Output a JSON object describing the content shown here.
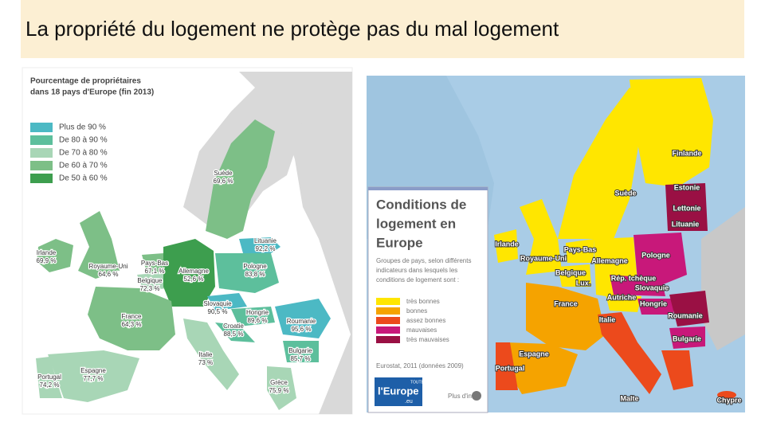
{
  "title": "La propriété du logement ne protège pas du mal logement",
  "left_map": {
    "title": [
      "Pourcentage de propriétaires",
      "dans 18 pays d'Europe (fin 2013)"
    ],
    "legend": [
      {
        "label": "Plus de 90 %",
        "color": "#4cb9c4"
      },
      {
        "label": "De 80 à 90 %",
        "color": "#5dbf9c"
      },
      {
        "label": "De 70 à 80 %",
        "color": "#a8d6b6"
      },
      {
        "label": "De 60 à 70 %",
        "color": "#7dbf87"
      },
      {
        "label": "De 50 à 60 %",
        "color": "#3d9e4e"
      }
    ],
    "countries": [
      {
        "name": "Suède",
        "value": "69,6 %"
      },
      {
        "name": "Irlande",
        "value": "69,9 %"
      },
      {
        "name": "Royaume-Uni",
        "value": "64,6 %"
      },
      {
        "name": "Pays-Bas",
        "value": "67,1 %"
      },
      {
        "name": "Belgique",
        "value": "72,3 %"
      },
      {
        "name": "Allemagne",
        "value": "52,6 %"
      },
      {
        "name": "Lituanie",
        "value": "92,2 %"
      },
      {
        "name": "Pologne",
        "value": "83,8 %"
      },
      {
        "name": "France",
        "value": "64,3 %"
      },
      {
        "name": "Slovaquie",
        "value": "90,5 %"
      },
      {
        "name": "Hongrie",
        "value": "89,6 %"
      },
      {
        "name": "Croatie",
        "value": "88,5 %"
      },
      {
        "name": "Roumanie",
        "value": "95,6 %"
      },
      {
        "name": "Italie",
        "value": "73 %"
      },
      {
        "name": "Bulgarie",
        "value": "85,7 %"
      },
      {
        "name": "Espagne",
        "value": "77,7 %"
      },
      {
        "name": "Portugal",
        "value": "74,2 %"
      },
      {
        "name": "Grèce",
        "value": "75,9 %"
      }
    ]
  },
  "right_map": {
    "title": [
      "Conditions de",
      "logement en",
      "Europe"
    ],
    "description": [
      "Groupes de pays, selon différents",
      "indicateurs dans lesquels les",
      "conditions de logement sont :"
    ],
    "legend": [
      {
        "label": "très bonnes",
        "color": "#ffe600"
      },
      {
        "label": "bonnes",
        "color": "#f5a300"
      },
      {
        "label": "assez bonnes",
        "color": "#ec4a1c"
      },
      {
        "label": "mauvaises",
        "color": "#c8187a"
      },
      {
        "label": "très mauvaises",
        "color": "#9a1044"
      }
    ],
    "source": "Eurostat, 2011 (données 2009)",
    "logo": [
      "TOUTE",
      "l'Europe",
      ".eu"
    ],
    "more_info": "Plus d'infos",
    "countries": [
      "Finlande",
      "Suède",
      "Estonie",
      "Lettonie",
      "Lituanie",
      "Irlande",
      "Pays-Bas",
      "Royaume-Uni",
      "Allemagne",
      "Pologne",
      "Belgique",
      "Lux.",
      "Rép. tchèque",
      "Slovaquie",
      "France",
      "Autriche",
      "Hongrie",
      "Italie",
      "Roumanie",
      "Bulgarie",
      "Espagne",
      "Portugal",
      "Malte",
      "Chypre"
    ]
  }
}
